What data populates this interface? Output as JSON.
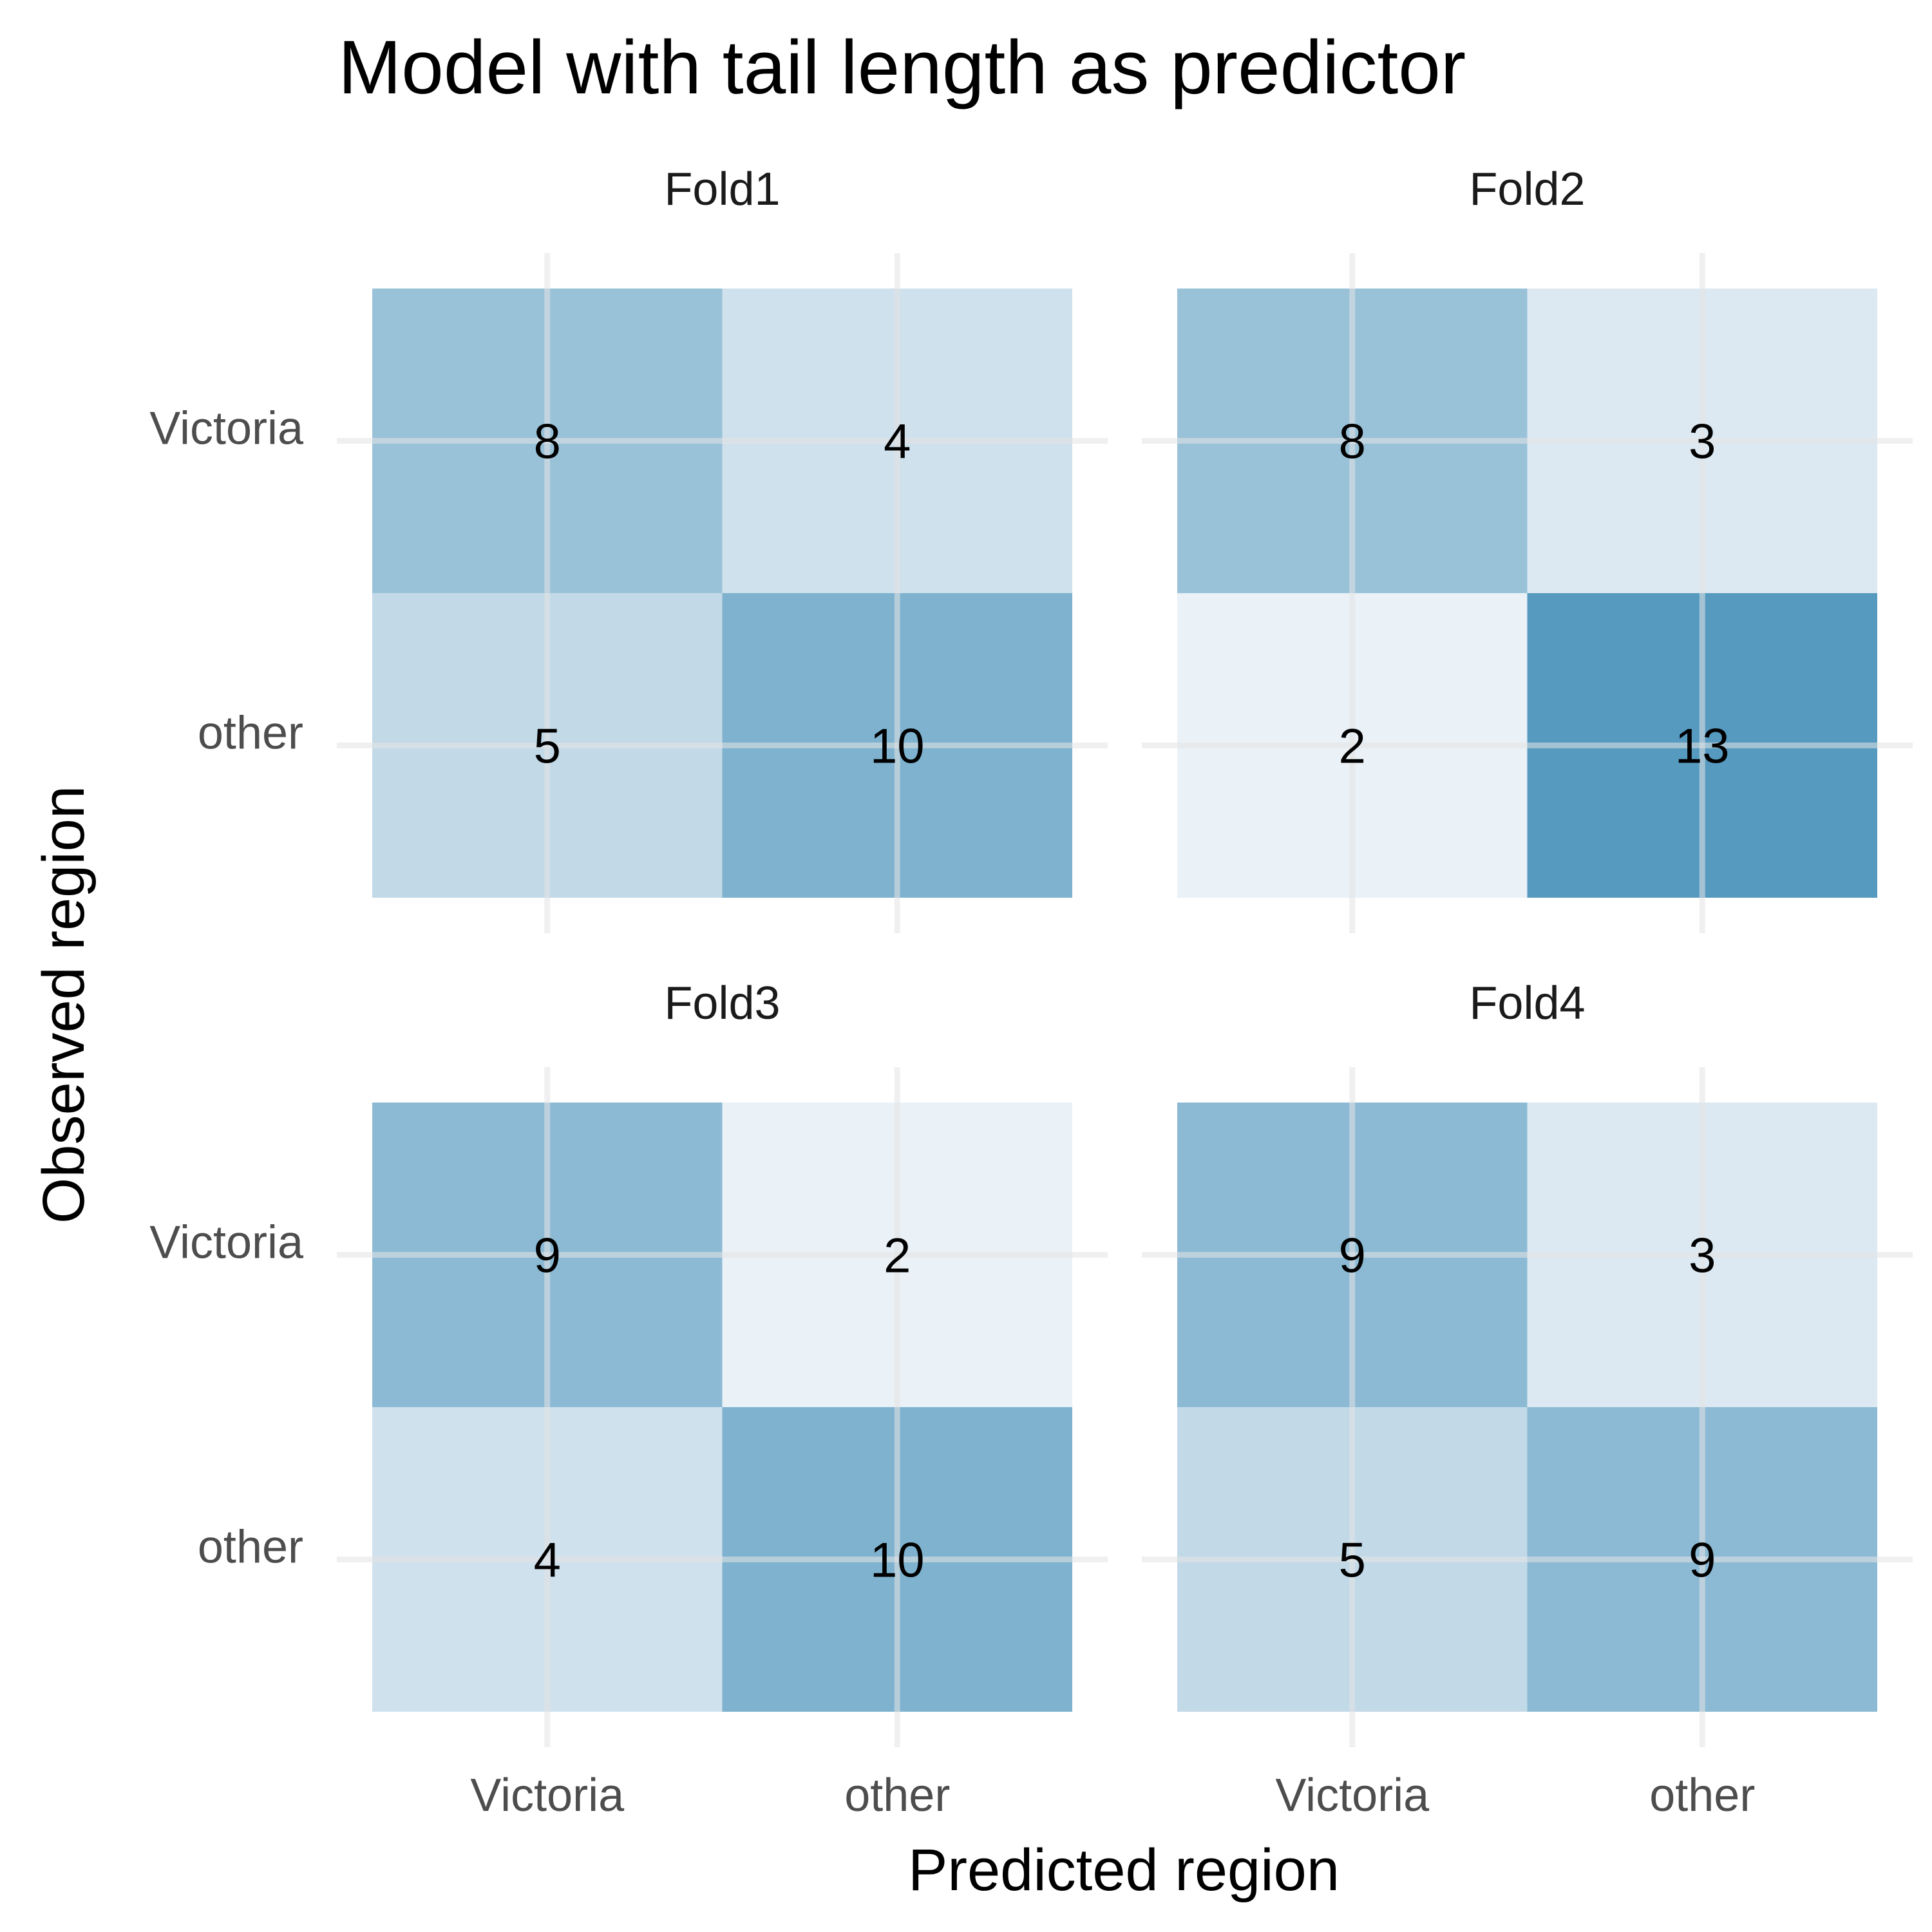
{
  "chart_data": {
    "type": "heatmap",
    "title": "Model with tail length as predictor",
    "xlabel": "Predicted region",
    "ylabel": "Observed region",
    "categories": [
      "Victoria",
      "other"
    ],
    "max_count": 13,
    "color_low": "#eaf1f7",
    "color_high": "#569ac0",
    "panels": [
      {
        "name": "Fold1",
        "cells": [
          {
            "observed": "Victoria",
            "predicted": "Victoria",
            "count": 8
          },
          {
            "observed": "Victoria",
            "predicted": "other",
            "count": 4
          },
          {
            "observed": "other",
            "predicted": "Victoria",
            "count": 5
          },
          {
            "observed": "other",
            "predicted": "other",
            "count": 10
          }
        ]
      },
      {
        "name": "Fold2",
        "cells": [
          {
            "observed": "Victoria",
            "predicted": "Victoria",
            "count": 8
          },
          {
            "observed": "Victoria",
            "predicted": "other",
            "count": 3
          },
          {
            "observed": "other",
            "predicted": "Victoria",
            "count": 2
          },
          {
            "observed": "other",
            "predicted": "other",
            "count": 13
          }
        ]
      },
      {
        "name": "Fold3",
        "cells": [
          {
            "observed": "Victoria",
            "predicted": "Victoria",
            "count": 9
          },
          {
            "observed": "Victoria",
            "predicted": "other",
            "count": 2
          },
          {
            "observed": "other",
            "predicted": "Victoria",
            "count": 4
          },
          {
            "observed": "other",
            "predicted": "other",
            "count": 10
          }
        ]
      },
      {
        "name": "Fold4",
        "cells": [
          {
            "observed": "Victoria",
            "predicted": "Victoria",
            "count": 9
          },
          {
            "observed": "Victoria",
            "predicted": "other",
            "count": 3
          },
          {
            "observed": "other",
            "predicted": "Victoria",
            "count": 5
          },
          {
            "observed": "other",
            "predicted": "other",
            "count": 9
          }
        ]
      }
    ]
  }
}
